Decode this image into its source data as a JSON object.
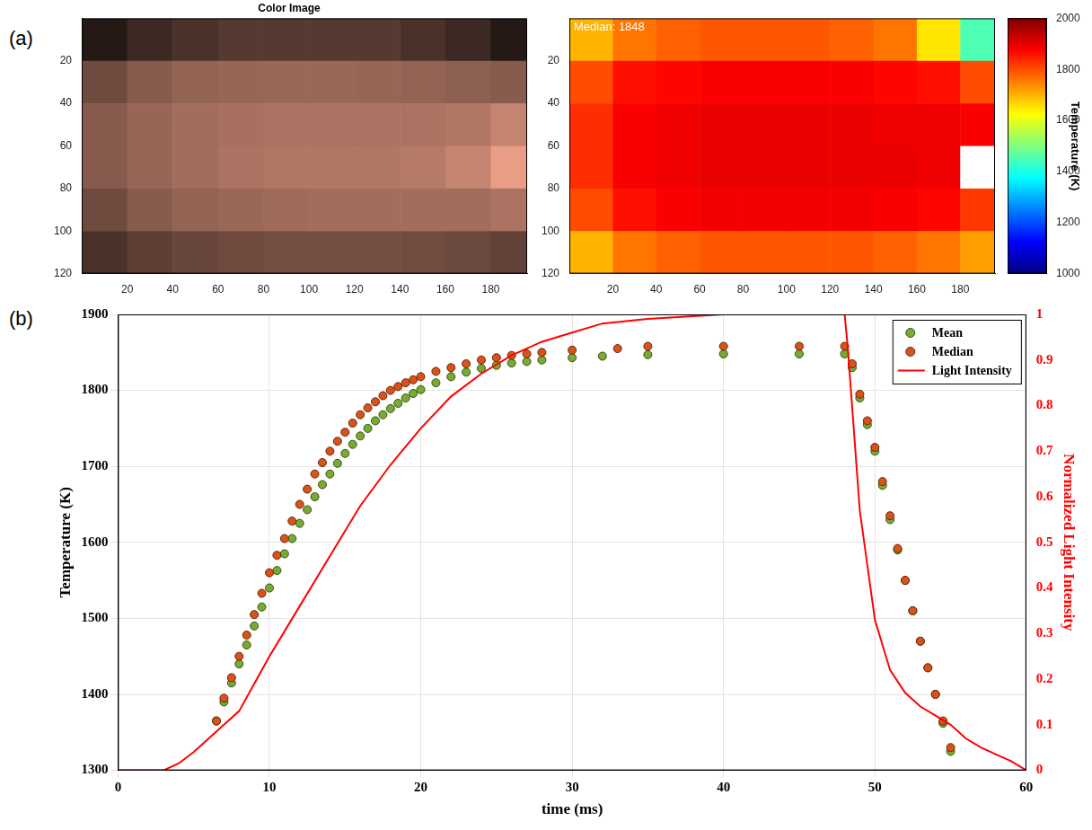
{
  "chart_data": [
    {
      "type": "image",
      "panel_label": "(a)",
      "title": "Color Image",
      "xlim": [
        0,
        196
      ],
      "xticks": [
        20,
        40,
        60,
        80,
        100,
        120,
        140,
        160,
        180
      ],
      "ylim": [
        0,
        120
      ],
      "yticks": [
        20,
        40,
        60,
        80,
        100,
        120
      ],
      "grid": false,
      "x_edges": [
        0,
        20,
        40,
        60,
        80,
        100,
        120,
        140,
        160,
        180,
        196
      ],
      "y_edges": [
        0,
        20,
        40,
        60,
        80,
        100,
        120
      ],
      "cells": [
        [
          0.15,
          0.25,
          0.3,
          0.35,
          0.35,
          0.35,
          0.35,
          0.3,
          0.25,
          0.15
        ],
        [
          0.45,
          0.55,
          0.6,
          0.62,
          0.63,
          0.63,
          0.62,
          0.6,
          0.58,
          0.55
        ],
        [
          0.55,
          0.62,
          0.66,
          0.68,
          0.7,
          0.7,
          0.7,
          0.7,
          0.72,
          0.8
        ],
        [
          0.55,
          0.62,
          0.66,
          0.7,
          0.72,
          0.72,
          0.72,
          0.74,
          0.8,
          0.95
        ],
        [
          0.45,
          0.55,
          0.6,
          0.63,
          0.65,
          0.66,
          0.66,
          0.66,
          0.66,
          0.7
        ],
        [
          0.3,
          0.38,
          0.42,
          0.45,
          0.47,
          0.47,
          0.47,
          0.46,
          0.44,
          0.4
        ]
      ]
    },
    {
      "type": "heatmap",
      "annotations": [
        "Median: 1848"
      ],
      "xlim": [
        0,
        196
      ],
      "xticks": [
        20,
        40,
        60,
        80,
        100,
        120,
        140,
        160,
        180
      ],
      "ylim": [
        0,
        120
      ],
      "yticks": [
        20,
        40,
        60,
        80,
        100,
        120
      ],
      "grid": false,
      "x_edges": [
        0,
        20,
        40,
        60,
        80,
        100,
        120,
        140,
        160,
        180,
        196
      ],
      "y_edges": [
        0,
        20,
        40,
        60,
        80,
        100,
        120
      ],
      "cells": [
        [
          1700,
          1760,
          1780,
          1790,
          1790,
          1790,
          1780,
          1760,
          1650,
          1450
        ],
        [
          1800,
          1860,
          1870,
          1880,
          1880,
          1880,
          1880,
          1870,
          1860,
          1800
        ],
        [
          1830,
          1880,
          1890,
          1895,
          1895,
          1895,
          1895,
          1890,
          1890,
          1880
        ],
        [
          1830,
          1880,
          1890,
          1895,
          1895,
          1895,
          1895,
          1895,
          1890,
          null
        ],
        [
          1800,
          1860,
          1880,
          1885,
          1885,
          1885,
          1885,
          1880,
          1870,
          1820
        ],
        [
          1700,
          1760,
          1780,
          1790,
          1790,
          1790,
          1790,
          1780,
          1760,
          1720
        ]
      ],
      "colorbar": {
        "label": "Temperature (K)",
        "range": [
          1000,
          2000
        ],
        "ticks": [
          1000,
          1200,
          1400,
          1600,
          1800,
          2000
        ]
      }
    },
    {
      "type": "scatter",
      "panel_label": "(b)",
      "xlabel": "time (ms)",
      "ylabel": "Temperature (K)",
      "y2label": "Normalized Light Intensity",
      "xlim": [
        0,
        60
      ],
      "xticks": [
        0,
        10,
        20,
        30,
        40,
        50,
        60
      ],
      "ylim": [
        1300,
        1900
      ],
      "yticks": [
        1300,
        1400,
        1500,
        1600,
        1700,
        1800,
        1900
      ],
      "y2lim": [
        0,
        1
      ],
      "y2ticks": [
        0,
        0.1,
        0.2,
        0.3,
        0.4,
        0.5,
        0.6,
        0.7,
        0.8,
        0.9,
        1
      ],
      "grid": true,
      "legend": "upper right",
      "series": [
        {
          "name": "Mean",
          "color": "#77ac30",
          "type": "scatter",
          "marker": "circle",
          "x": [
            6.5,
            7,
            7.5,
            8,
            8.5,
            9,
            9.5,
            10,
            10.5,
            11,
            11.5,
            12,
            12.5,
            13,
            13.5,
            14,
            14.5,
            15,
            15.5,
            16,
            16.5,
            17,
            17.5,
            18,
            18.5,
            19,
            19.5,
            20,
            21,
            22,
            23,
            24,
            25,
            26,
            27,
            28,
            30,
            32,
            35,
            40,
            45,
            48,
            48.5,
            49,
            49.5,
            50,
            50.5,
            51,
            51.5,
            52,
            52.5,
            53,
            53.5,
            54,
            54.5,
            55
          ],
          "values": [
            1365,
            1390,
            1415,
            1440,
            1465,
            1490,
            1515,
            1540,
            1563,
            1585,
            1605,
            1625,
            1643,
            1660,
            1676,
            1690,
            1704,
            1717,
            1729,
            1740,
            1750,
            1760,
            1768,
            1776,
            1783,
            1790,
            1796,
            1801,
            1810,
            1818,
            1824,
            1829,
            1833,
            1836,
            1838,
            1840,
            1843,
            1845,
            1847,
            1848,
            1848,
            1848,
            1830,
            1790,
            1755,
            1720,
            1675,
            1630,
            1590,
            1550,
            1510,
            1470,
            1435,
            1400,
            1362,
            1325
          ]
        },
        {
          "name": "Median",
          "color": "#d95319",
          "type": "scatter",
          "marker": "circle",
          "x": [
            6.5,
            7,
            7.5,
            8,
            8.5,
            9,
            9.5,
            10,
            10.5,
            11,
            11.5,
            12,
            12.5,
            13,
            13.5,
            14,
            14.5,
            15,
            15.5,
            16,
            16.5,
            17,
            17.5,
            18,
            18.5,
            19,
            19.5,
            20,
            21,
            22,
            23,
            24,
            25,
            26,
            27,
            28,
            30,
            33,
            35,
            40,
            45,
            48,
            48.5,
            49,
            49.5,
            50,
            50.5,
            51,
            51.5,
            52,
            52.5,
            53,
            53.5,
            54,
            54.5,
            55
          ],
          "values": [
            1365,
            1395,
            1422,
            1450,
            1478,
            1505,
            1533,
            1560,
            1583,
            1605,
            1628,
            1650,
            1670,
            1690,
            1705,
            1720,
            1733,
            1745,
            1757,
            1768,
            1777,
            1785,
            1793,
            1800,
            1805,
            1810,
            1814,
            1818,
            1825,
            1830,
            1835,
            1840,
            1843,
            1846,
            1848,
            1850,
            1853,
            1855,
            1858,
            1858,
            1858,
            1858,
            1835,
            1795,
            1760,
            1725,
            1680,
            1635,
            1592,
            1550,
            1510,
            1470,
            1435,
            1400,
            1365,
            1330
          ]
        },
        {
          "name": "Light Intensity",
          "color": "#ff0000",
          "type": "line",
          "line_style": "solid",
          "axis": "y2",
          "x": [
            0,
            3,
            4,
            5,
            6,
            7,
            8,
            9,
            10,
            12,
            14,
            16,
            18,
            20,
            22,
            24,
            26,
            28,
            30,
            32,
            35,
            40,
            48,
            48.2,
            49,
            50,
            51,
            52,
            53,
            54,
            55,
            56,
            57,
            58,
            59,
            60
          ],
          "values": [
            0,
            0,
            0.015,
            0.04,
            0.07,
            0.1,
            0.13,
            0.19,
            0.25,
            0.36,
            0.47,
            0.58,
            0.67,
            0.75,
            0.82,
            0.87,
            0.91,
            0.94,
            0.96,
            0.98,
            0.99,
            1,
            1,
            0.93,
            0.57,
            0.33,
            0.22,
            0.17,
            0.14,
            0.12,
            0.1,
            0.07,
            0.05,
            0.035,
            0.02,
            0
          ]
        }
      ]
    }
  ]
}
